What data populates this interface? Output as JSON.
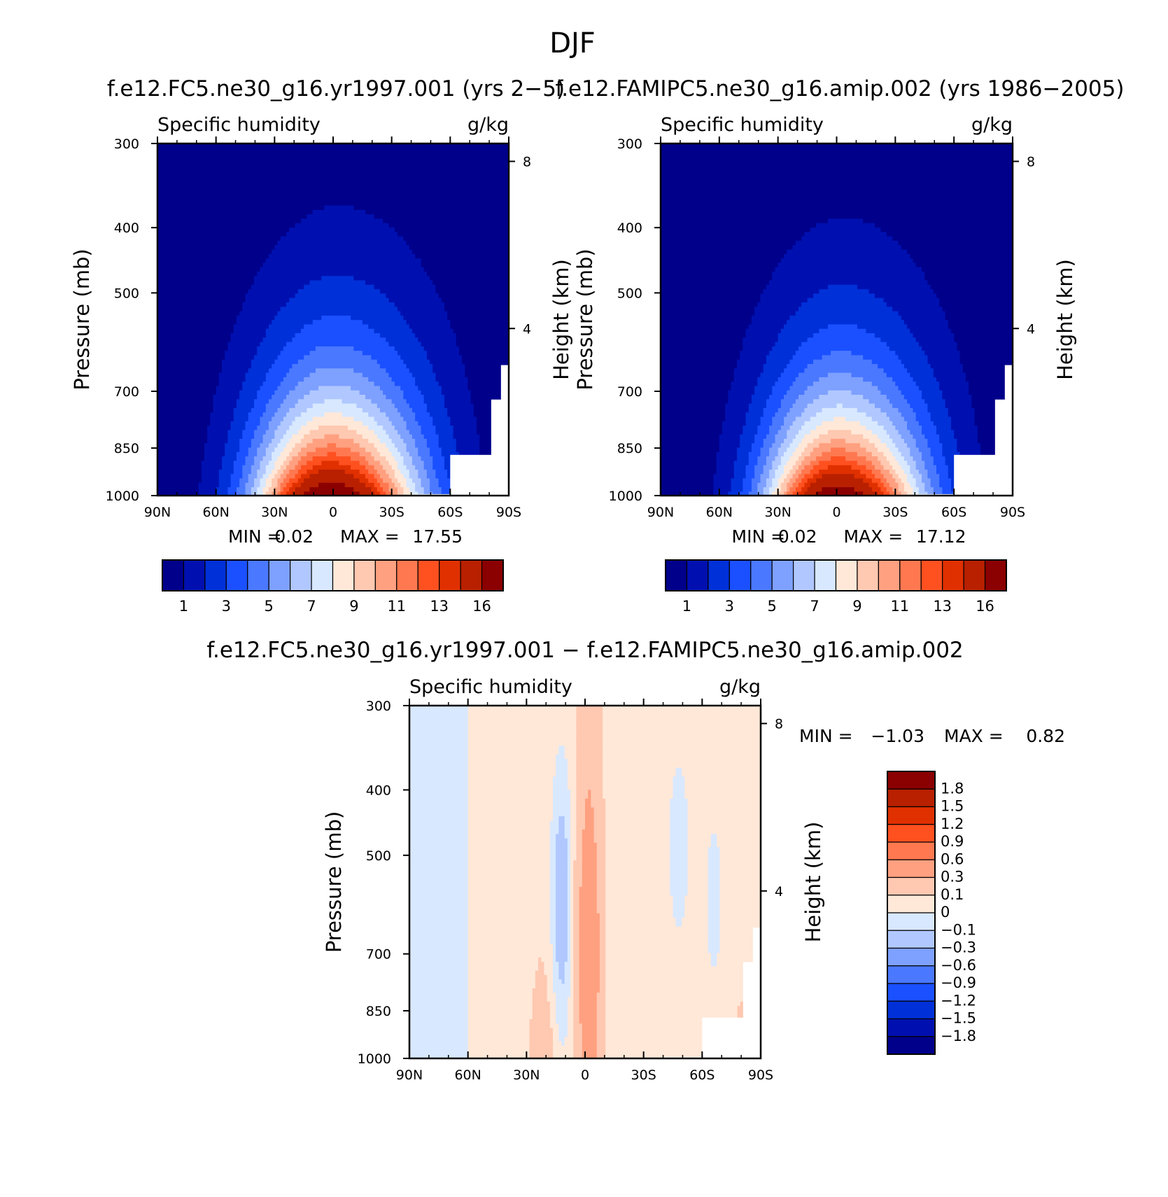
{
  "figure": {
    "title": "DJF"
  },
  "chart_data": [
    {
      "type": "heatmap",
      "id": "p1",
      "title": "f.e12.FC5.ne30_g16.yr1997.001 (yrs 2−5)",
      "subtitle_left": "Specific humidity",
      "subtitle_right": "g/kg",
      "ylabel": "Pressure (mb)",
      "ylabel_right": "Height (km)",
      "x_ticks": [
        "90N",
        "60N",
        "30N",
        "0",
        "30S",
        "60S",
        "90S"
      ],
      "y_ticks": [
        "300",
        "400",
        "500",
        "700",
        "850",
        "1000"
      ],
      "y_right_ticks": [
        "8",
        "4"
      ],
      "xlim": [
        90,
        -90
      ],
      "ylim": [
        1000,
        300
      ],
      "min_label": "MIN =",
      "min_value": "0.02",
      "max_label": "MAX =",
      "max_value": "17.55",
      "colorbar": {
        "orientation": "horizontal",
        "levels": [
          1,
          2,
          3,
          4,
          5,
          6,
          7,
          8,
          9,
          10,
          11,
          12,
          13,
          14,
          16
        ],
        "labels": [
          "1",
          "3",
          "5",
          "7",
          "9",
          "11",
          "13",
          "16"
        ],
        "colors": [
          "#00008b",
          "#0010b0",
          "#0030d8",
          "#1a50ff",
          "#4a78ff",
          "#7ea0ff",
          "#b0c8ff",
          "#d8e8ff",
          "#ffe8d8",
          "#ffc8b0",
          "#ffa080",
          "#ff7850",
          "#ff5020",
          "#e03000",
          "#b82000",
          "#8b0000"
        ]
      },
      "field": {
        "peak_lat": 2,
        "peak_value": 17.55,
        "lat_width": 42,
        "tilt": 6,
        "scale_height_frac": 0.28
      }
    },
    {
      "type": "heatmap",
      "id": "p2",
      "title": "f.e12.FAMIPC5.ne30_g16.amip.002 (yrs 1986−2005)",
      "subtitle_left": "Specific humidity",
      "subtitle_right": "g/kg",
      "ylabel": "Pressure (mb)",
      "ylabel_right": "Height (km)",
      "x_ticks": [
        "90N",
        "60N",
        "30N",
        "0",
        "30S",
        "60S",
        "90S"
      ],
      "y_ticks": [
        "300",
        "400",
        "500",
        "700",
        "850",
        "1000"
      ],
      "y_right_ticks": [
        "8",
        "4"
      ],
      "xlim": [
        90,
        -90
      ],
      "ylim": [
        1000,
        300
      ],
      "min_label": "MIN =",
      "min_value": "0.02",
      "max_label": "MAX =",
      "max_value": "17.12",
      "colorbar": {
        "orientation": "horizontal",
        "levels": [
          1,
          2,
          3,
          4,
          5,
          6,
          7,
          8,
          9,
          10,
          11,
          12,
          13,
          14,
          16
        ],
        "labels": [
          "1",
          "3",
          "5",
          "7",
          "9",
          "11",
          "13",
          "16"
        ],
        "colors": [
          "#00008b",
          "#0010b0",
          "#0030d8",
          "#1a50ff",
          "#4a78ff",
          "#7ea0ff",
          "#b0c8ff",
          "#d8e8ff",
          "#ffe8d8",
          "#ffc8b0",
          "#ffa080",
          "#ff7850",
          "#ff5020",
          "#e03000",
          "#b82000",
          "#8b0000"
        ]
      },
      "field": {
        "peak_lat": 0,
        "peak_value": 17.12,
        "lat_width": 40,
        "tilt": 5,
        "scale_height_frac": 0.27
      }
    },
    {
      "type": "heatmap",
      "id": "diff",
      "title": "f.e12.FC5.ne30_g16.yr1997.001 − f.e12.FAMIPC5.ne30_g16.amip.002",
      "subtitle_left": "Specific humidity",
      "subtitle_right": "g/kg",
      "ylabel": "Pressure (mb)",
      "ylabel_right": "Height (km)",
      "x_ticks": [
        "90N",
        "60N",
        "30N",
        "0",
        "30S",
        "60S",
        "90S"
      ],
      "y_ticks": [
        "300",
        "400",
        "500",
        "700",
        "850",
        "1000"
      ],
      "y_right_ticks": [
        "8",
        "4"
      ],
      "xlim": [
        90,
        -90
      ],
      "ylim": [
        1000,
        300
      ],
      "min_label": "MIN =",
      "min_value": "−1.03",
      "max_label": "MAX =",
      "max_value": "0.82",
      "colorbar": {
        "orientation": "vertical",
        "levels": [
          -1.8,
          -1.5,
          -1.2,
          -0.9,
          -0.6,
          -0.3,
          -0.1,
          0,
          0.1,
          0.3,
          0.6,
          0.9,
          1.2,
          1.5,
          1.8
        ],
        "labels": [
          "1.8",
          "1.5",
          "1.2",
          "0.9",
          "0.6",
          "0.3",
          "0.1",
          "0",
          "−0.1",
          "−0.3",
          "−0.6",
          "−0.9",
          "−1.2",
          "−1.5",
          "−1.8"
        ],
        "colors": [
          "#00008b",
          "#0010b0",
          "#0030d8",
          "#1a50ff",
          "#4a78ff",
          "#7ea0ff",
          "#b0c8ff",
          "#d8e8ff",
          "#ffe8d8",
          "#ffc8b0",
          "#ffa080",
          "#ff7850",
          "#ff5020",
          "#e03000",
          "#b82000",
          "#8b0000"
        ]
      }
    }
  ]
}
